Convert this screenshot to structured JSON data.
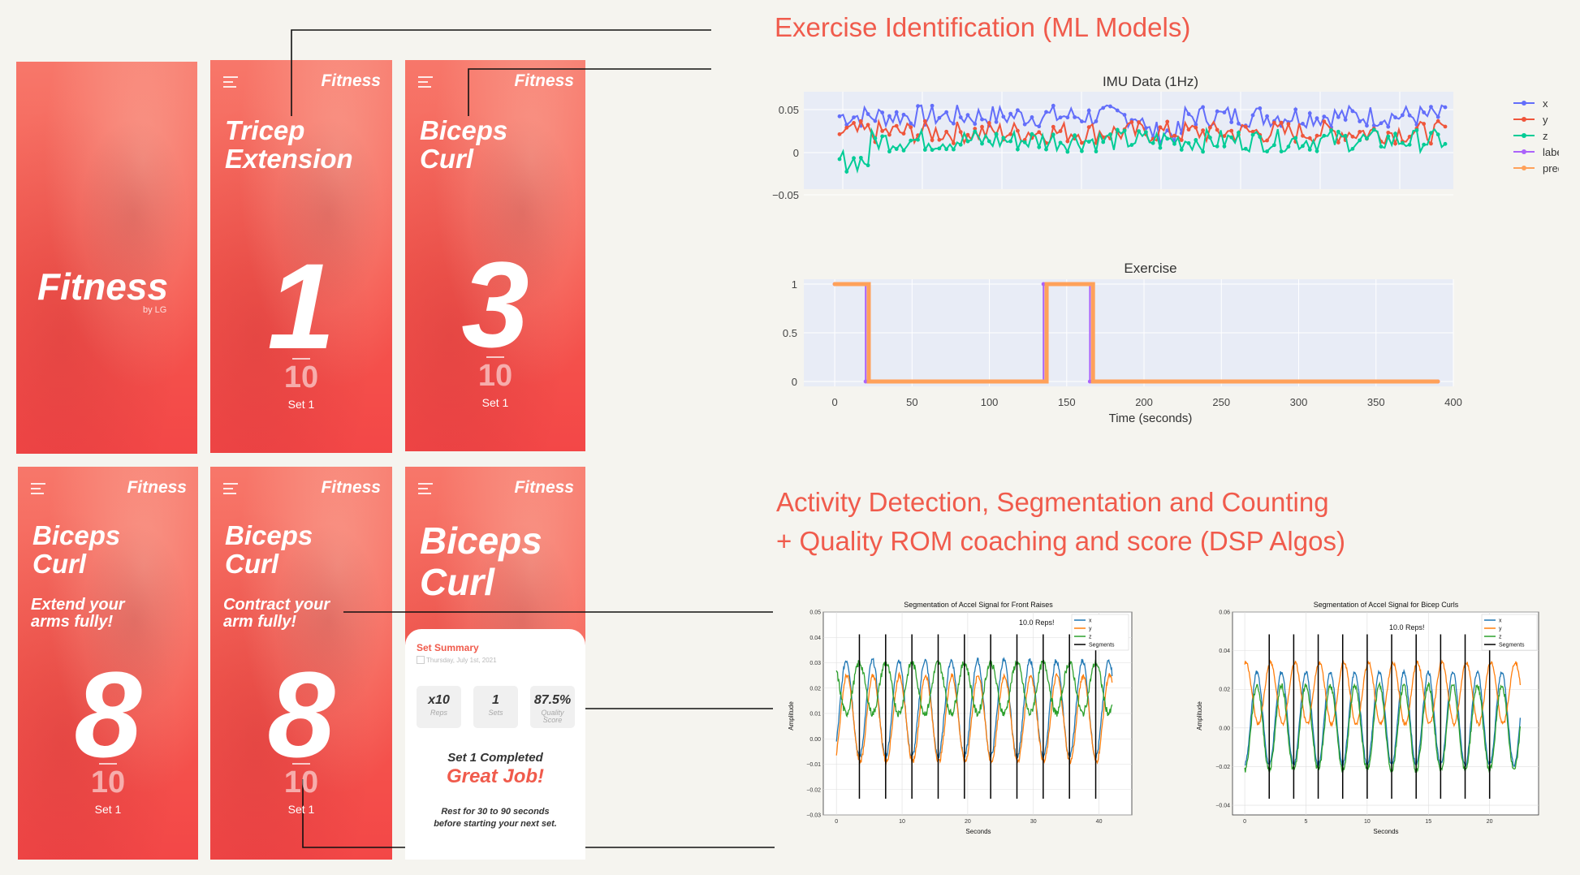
{
  "brand": "Fitness",
  "splash": {
    "title": "Fitness",
    "by": "by LG"
  },
  "screens": [
    {
      "title_lines": [
        "Tricep",
        "Extension"
      ],
      "count": "1",
      "target": "10",
      "set": "Set 1"
    },
    {
      "title_lines": [
        "Biceps",
        "Curl"
      ],
      "count": "3",
      "target": "10",
      "set": "Set 1"
    },
    {
      "title_lines": [
        "Biceps",
        "Curl"
      ],
      "instruction_lines": [
        "Extend your",
        "arms fully!"
      ],
      "count": "8",
      "target": "10",
      "set": "Set 1"
    },
    {
      "title_lines": [
        "Biceps",
        "Curl"
      ],
      "instruction_lines": [
        "Contract your",
        "arm fully!"
      ],
      "count": "8",
      "target": "10",
      "set": "Set 1"
    }
  ],
  "summary": {
    "title_lines": [
      "Biceps",
      "Curl"
    ],
    "heading": "Set Summary",
    "date": "Thursday, July 1st, 2021",
    "stats": [
      {
        "value": "x10",
        "label": "Reps"
      },
      {
        "value": "1",
        "label": "Sets"
      },
      {
        "value": "87.5%",
        "label": "Quality Score"
      }
    ],
    "completed": "Set 1 Completed",
    "great": "Great Job!",
    "rest_lines": [
      "Rest for 30 to 90 seconds",
      "before starting your next set."
    ]
  },
  "headlines": {
    "ml": "Exercise Identification (ML Models)",
    "dsp_line1": "Activity Detection, Segmentation and Counting",
    "dsp_line2": "+ Quality ROM coaching and score (DSP Algos)"
  },
  "colors": {
    "accent": "#f05b4c",
    "x": "#636efa",
    "y": "#ef553b",
    "z": "#00cc96",
    "label": "#ab63fa",
    "pred": "#ffa15a"
  },
  "chart_data": [
    {
      "type": "line",
      "title": "IMU Data (1Hz)",
      "x_range": [
        0,
        390
      ],
      "ylim": [
        -0.06,
        0.06
      ],
      "yticks": [
        "0.05",
        "0",
        "−0.05"
      ],
      "legend": [
        "x",
        "y",
        "z",
        "label",
        "pred"
      ],
      "legend_position": "right",
      "series": [
        {
          "name": "x",
          "approx_mean": 0.03
        },
        {
          "name": "y",
          "approx_mean": 0.01
        },
        {
          "name": "z",
          "approx_mean": 0.0
        }
      ]
    },
    {
      "type": "line",
      "title": "Exercise",
      "xlabel": "Time (seconds)",
      "xlim": [
        -20,
        400
      ],
      "ylim": [
        -0.05,
        1.05
      ],
      "xticks": [
        "0",
        "50",
        "100",
        "150",
        "200",
        "250",
        "300",
        "350",
        "400"
      ],
      "yticks": [
        "1",
        "0.5",
        "0"
      ],
      "series": [
        {
          "name": "label",
          "x": [
            0,
            20,
            20,
            135,
            135,
            165,
            165,
            390
          ],
          "y": [
            1,
            1,
            0,
            0,
            1,
            1,
            0,
            0
          ]
        },
        {
          "name": "pred",
          "x": [
            0,
            22,
            22,
            137,
            137,
            167,
            167,
            390
          ],
          "y": [
            1,
            1,
            0,
            0,
            1,
            1,
            0,
            0
          ]
        }
      ]
    },
    {
      "type": "line",
      "title": "Segmentation of Accel Signal for Front Raises",
      "xlabel": "Seconds",
      "ylabel": "Amplitude",
      "annotation": "10.0 Reps!",
      "xlim": [
        -2,
        45
      ],
      "ylim": [
        -0.03,
        0.05
      ],
      "xticks": [
        "0",
        "10",
        "20",
        "30",
        "40"
      ],
      "yticks": [
        "0.05",
        "0.04",
        "0.03",
        "0.02",
        "0.01",
        "0.00",
        "−0.01",
        "−0.02",
        "−0.03"
      ],
      "legend": [
        "x",
        "y",
        "z",
        "Segments"
      ],
      "legend_position": "top-right",
      "segments": [
        3.5,
        7.5,
        11.5,
        15.5,
        19.5,
        23.5,
        27.5,
        31.5,
        35.5,
        39.5
      ]
    },
    {
      "type": "line",
      "title": "Segmentation of Accel Signal for Bicep Curls",
      "xlabel": "Seconds",
      "ylabel": "Amplitude",
      "annotation": "10.0 Reps!",
      "xlim": [
        -1,
        24
      ],
      "ylim": [
        -0.045,
        0.06
      ],
      "xticks": [
        "0",
        "5",
        "10",
        "15",
        "20"
      ],
      "yticks": [
        "0.06",
        "0.04",
        "0.02",
        "0.00",
        "−0.02",
        "−0.04"
      ],
      "legend": [
        "x",
        "y",
        "z",
        "Segments"
      ],
      "legend_position": "top-right",
      "segments": [
        2,
        4,
        6,
        8,
        10,
        12,
        14,
        16,
        18,
        20
      ]
    }
  ]
}
